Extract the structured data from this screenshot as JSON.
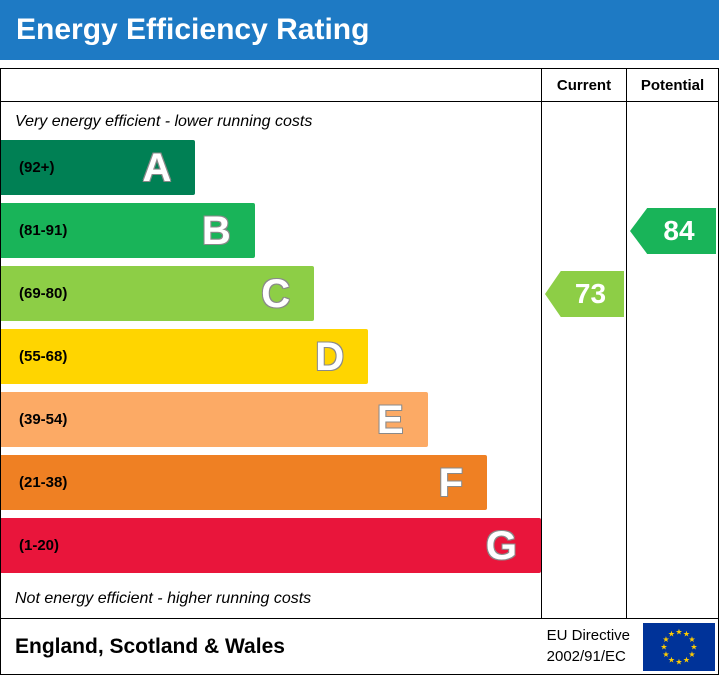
{
  "title": "Energy Efficiency Rating",
  "colors": {
    "title_bar": "#1e7ac4"
  },
  "header": {
    "current_label": "Current",
    "potential_label": "Potential"
  },
  "notes": {
    "top": "Very energy efficient - lower running costs",
    "bottom": "Not energy efficient - higher running costs"
  },
  "chart_data": {
    "type": "bar",
    "title": "Energy Efficiency Rating",
    "bands": [
      {
        "letter": "A",
        "range": "(92+)",
        "color": "#008054",
        "width_pct": 36
      },
      {
        "letter": "B",
        "range": "(81-91)",
        "color": "#19b459",
        "width_pct": 47
      },
      {
        "letter": "C",
        "range": "(69-80)",
        "color": "#8dce46",
        "width_pct": 58
      },
      {
        "letter": "D",
        "range": "(55-68)",
        "color": "#ffd500",
        "width_pct": 68
      },
      {
        "letter": "E",
        "range": "(39-54)",
        "color": "#fcaa65",
        "width_pct": 79
      },
      {
        "letter": "F",
        "range": "(21-38)",
        "color": "#ef8023",
        "width_pct": 90
      },
      {
        "letter": "G",
        "range": "(1-20)",
        "color": "#e9153b",
        "width_pct": 100
      }
    ],
    "current": {
      "value": 73,
      "band": "C",
      "color": "#8dce46"
    },
    "potential": {
      "value": 84,
      "band": "B",
      "color": "#19b459"
    }
  },
  "footer": {
    "region": "England, Scotland & Wales",
    "directive_line1": "EU Directive",
    "directive_line2": "2002/91/EC"
  }
}
